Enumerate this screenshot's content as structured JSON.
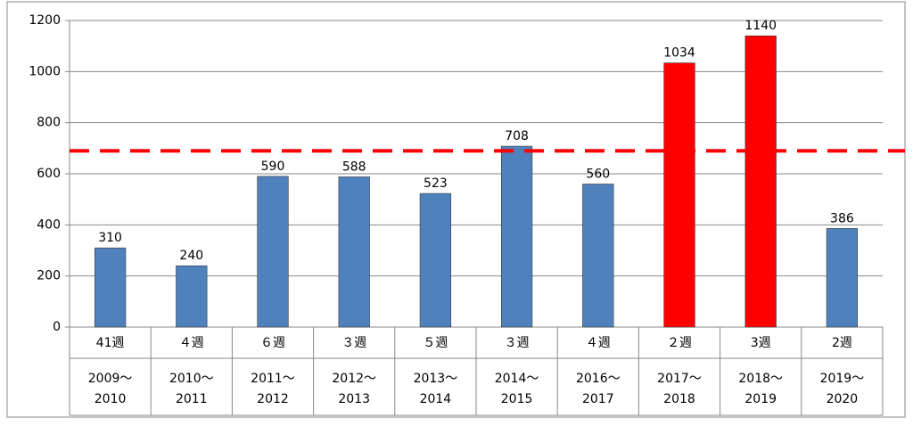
{
  "chart_data": {
    "type": "bar",
    "week_labels": [
      "41週",
      "４週",
      "６週",
      "３週",
      "５週",
      "３週",
      "４週",
      "２週",
      "3週",
      "2週"
    ],
    "categories": [
      [
        "2009～",
        "2010"
      ],
      [
        "2010～",
        "2011"
      ],
      [
        "2011～",
        "2012"
      ],
      [
        "2012～",
        "2013"
      ],
      [
        "2013～",
        "2014"
      ],
      [
        "2014～",
        "2015"
      ],
      [
        "2016～",
        "2017"
      ],
      [
        "2017～",
        "2018"
      ],
      [
        "2018～",
        "2019"
      ],
      [
        "2019～",
        "2020"
      ]
    ],
    "values": [
      310,
      240,
      590,
      588,
      523,
      708,
      560,
      1034,
      1140,
      386
    ],
    "colors": [
      "#4f81bd",
      "#4f81bd",
      "#4f81bd",
      "#4f81bd",
      "#4f81bd",
      "#4f81bd",
      "#4f81bd",
      "#ff0000",
      "#ff0000",
      "#4f81bd"
    ],
    "ylim": [
      0,
      1200
    ],
    "yticks": [
      0,
      200,
      400,
      600,
      800,
      1000,
      1200
    ],
    "grid": true,
    "reference_line": {
      "value": 690,
      "color": "#ff0000",
      "style": "dashed"
    }
  }
}
